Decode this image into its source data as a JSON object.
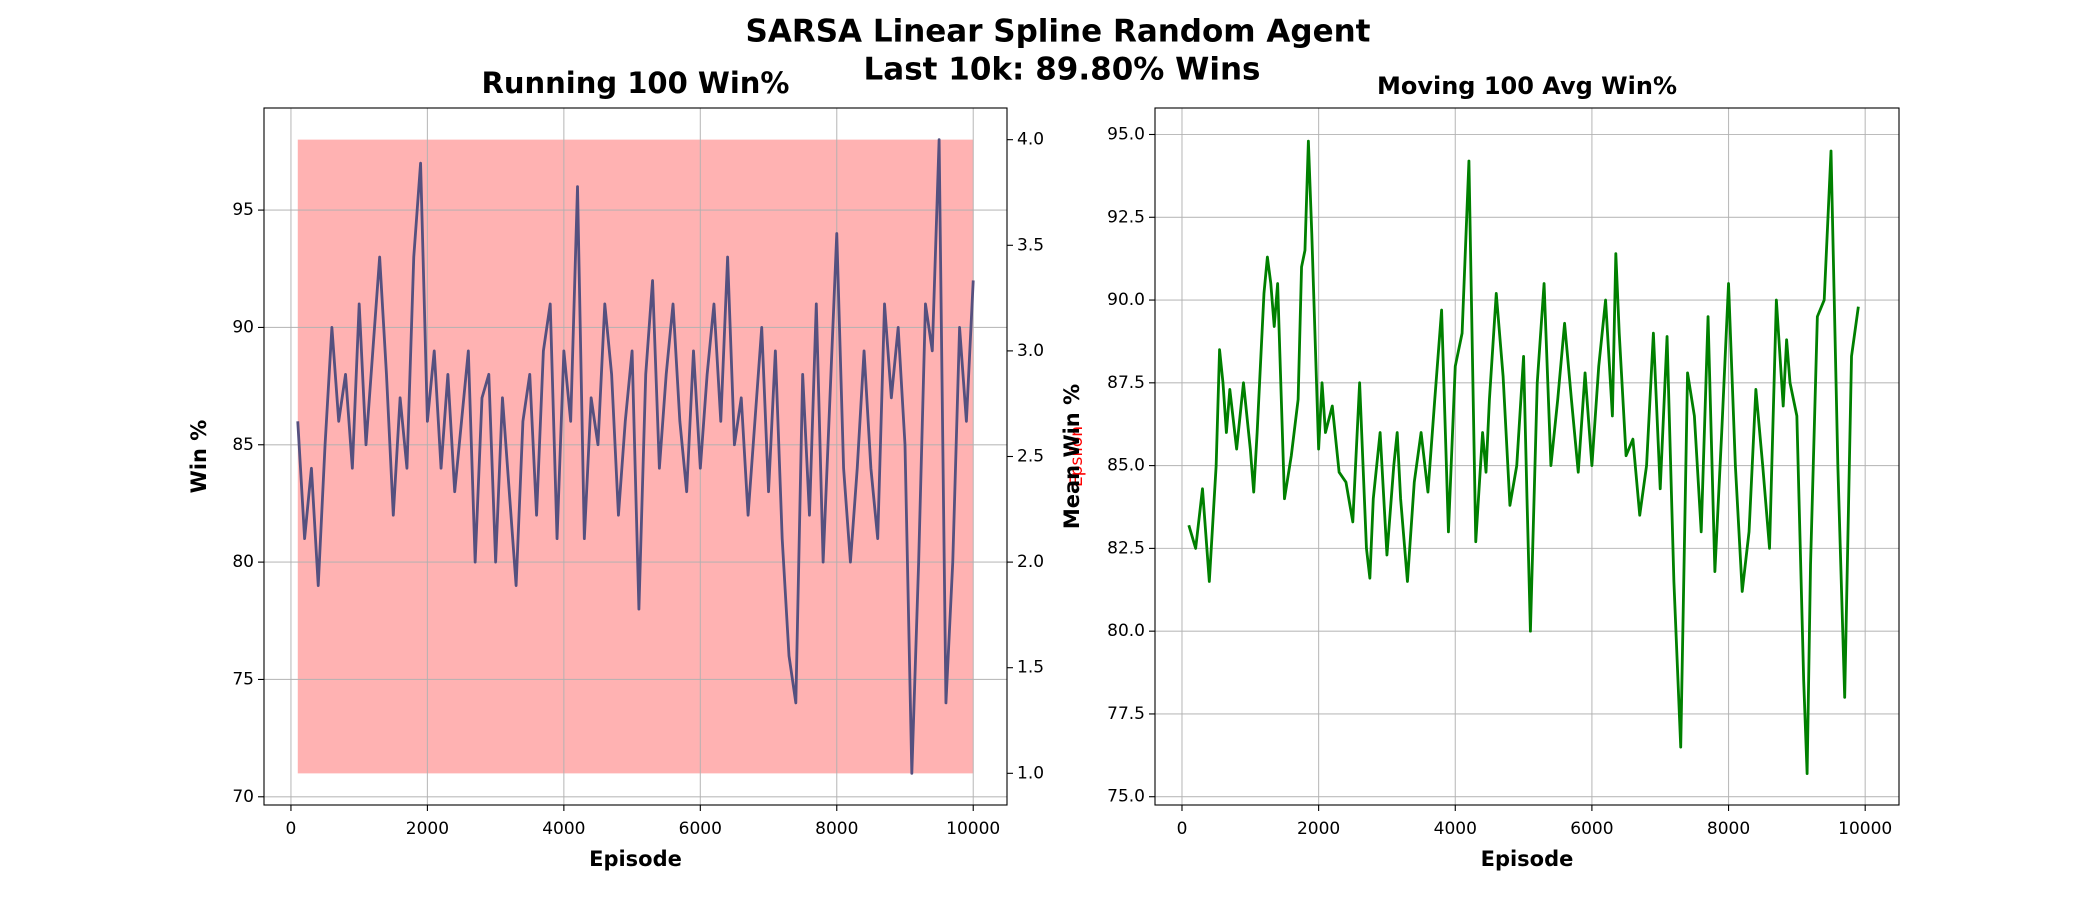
{
  "suptitle": [
    "SARSA Linear Spline Random Agent",
    "Last 10k: 89.80% Wins"
  ],
  "chart_data": [
    {
      "type": "line",
      "title": "Running 100 Win%",
      "xlabel": "Episode",
      "ylabel": "Win %",
      "y2label": "Epsilon",
      "y2label_color": "#ff0000",
      "xlim": [
        -395,
        10495
      ],
      "xticks": [
        0,
        2000,
        4000,
        6000,
        8000,
        10000
      ],
      "ylim": [
        69.65,
        99.35
      ],
      "yticks": [
        70,
        75,
        80,
        85,
        90,
        95
      ],
      "y2lim": [
        0.85,
        4.15
      ],
      "y2ticks": [
        {
          "value": 1,
          "label": "1.0"
        },
        1.5,
        {
          "value": 2,
          "label": "2.0"
        },
        2.5,
        {
          "value": 3,
          "label": "3.0"
        },
        3.5,
        {
          "value": 4,
          "label": "4.0"
        }
      ],
      "grid": true,
      "band": {
        "color": "#ff0000",
        "opacity": 0.3,
        "x": [
          100,
          10000
        ],
        "lower": [
          71,
          71
        ],
        "upper": [
          98,
          98
        ]
      },
      "series": [
        {
          "color": "#55507f",
          "x": [
            100,
            200,
            300,
            400,
            500,
            600,
            700,
            800,
            900,
            1000,
            1100,
            1200,
            1300,
            1400,
            1500,
            1600,
            1700,
            1800,
            1900,
            2000,
            2100,
            2200,
            2300,
            2400,
            2500,
            2600,
            2700,
            2800,
            2900,
            3000,
            3100,
            3200,
            3300,
            3400,
            3500,
            3600,
            3700,
            3800,
            3900,
            4000,
            4100,
            4200,
            4300,
            4400,
            4500,
            4600,
            4700,
            4800,
            4900,
            5000,
            5100,
            5200,
            5300,
            5400,
            5500,
            5600,
            5700,
            5800,
            5900,
            6000,
            6100,
            6200,
            6300,
            6400,
            6500,
            6600,
            6700,
            6800,
            6900,
            7000,
            7100,
            7200,
            7300,
            7400,
            7500,
            7600,
            7700,
            7800,
            7900,
            8000,
            8100,
            8200,
            8300,
            8400,
            8500,
            8600,
            8700,
            8800,
            8900,
            9000,
            9100,
            9200,
            9300,
            9400,
            9500,
            9600,
            9700,
            9800,
            9900,
            10000
          ],
          "values": [
            86,
            81,
            84,
            79,
            85,
            90,
            86,
            88,
            84,
            91,
            85,
            89,
            93,
            88,
            82,
            87,
            84,
            93,
            97,
            86,
            89,
            84,
            88,
            83,
            86,
            89,
            80,
            87,
            88,
            80,
            87,
            83,
            79,
            86,
            88,
            82,
            89,
            91,
            81,
            89,
            86,
            96,
            81,
            87,
            85,
            91,
            88,
            82,
            86,
            89,
            78,
            88,
            92,
            84,
            88,
            91,
            86,
            83,
            89,
            84,
            88,
            91,
            86,
            93,
            85,
            87,
            82,
            86,
            90,
            83,
            89,
            81,
            76,
            74,
            88,
            82,
            91,
            80,
            87,
            94,
            84,
            80,
            84,
            89,
            84,
            81,
            91,
            87,
            90,
            85,
            71,
            80,
            91,
            89,
            98,
            74,
            80,
            90,
            86,
            92
          ]
        }
      ]
    },
    {
      "type": "line",
      "title": "Moving 100 Avg Win%",
      "xlabel": "Episode",
      "ylabel": "Mean Win %",
      "xlim": [
        -395,
        10495
      ],
      "xticks": [
        0,
        2000,
        4000,
        6000,
        8000,
        10000
      ],
      "ylim": [
        74.75,
        95.8
      ],
      "yticks": [
        {
          "value": 75,
          "label": "75.0"
        },
        77.5,
        {
          "value": 80,
          "label": "80.0"
        },
        82.5,
        {
          "value": 85,
          "label": "85.0"
        },
        87.5,
        {
          "value": 90,
          "label": "90.0"
        },
        92.5,
        {
          "value": 95,
          "label": "95.0"
        }
      ],
      "grid": true,
      "series": [
        {
          "color": "#008000",
          "x": [
            100,
            200,
            300,
            400,
            500,
            550,
            600,
            650,
            700,
            800,
            900,
            1000,
            1050,
            1100,
            1200,
            1250,
            1300,
            1350,
            1400,
            1500,
            1600,
            1700,
            1750,
            1800,
            1850,
            1900,
            2000,
            2050,
            2100,
            2200,
            2300,
            2400,
            2500,
            2600,
            2700,
            2750,
            2800,
            2900,
            3000,
            3100,
            3150,
            3200,
            3300,
            3400,
            3500,
            3600,
            3700,
            3800,
            3900,
            4000,
            4100,
            4200,
            4300,
            4400,
            4450,
            4500,
            4600,
            4700,
            4800,
            4900,
            5000,
            5050,
            5100,
            5200,
            5300,
            5400,
            5500,
            5600,
            5700,
            5800,
            5900,
            6000,
            6100,
            6200,
            6300,
            6350,
            6400,
            6500,
            6600,
            6700,
            6800,
            6900,
            7000,
            7100,
            7200,
            7300,
            7400,
            7500,
            7600,
            7700,
            7800,
            7900,
            8000,
            8100,
            8200,
            8300,
            8400,
            8500,
            8600,
            8700,
            8800,
            8850,
            8900,
            9000,
            9100,
            9150,
            9200,
            9300,
            9400,
            9500,
            9600,
            9700,
            9800,
            9900
          ],
          "values": [
            83.2,
            82.5,
            84.3,
            81.5,
            85,
            88.5,
            87.5,
            86,
            87.3,
            85.5,
            87.5,
            85.5,
            84.2,
            86,
            90.2,
            91.3,
            90.5,
            89.2,
            90.5,
            84,
            85.3,
            87,
            91,
            91.5,
            94.8,
            92,
            85.5,
            87.5,
            86,
            86.8,
            84.8,
            84.5,
            83.3,
            87.5,
            82.5,
            81.6,
            84,
            86,
            82.3,
            85,
            86,
            84,
            81.5,
            84.5,
            86,
            84.2,
            87,
            89.7,
            83,
            88,
            89,
            94.2,
            82.7,
            86,
            84.8,
            87,
            90.2,
            87.7,
            83.8,
            85,
            88.3,
            84,
            80,
            87.5,
            90.5,
            85,
            87,
            89.3,
            87,
            84.8,
            87.8,
            85,
            88,
            90,
            86.5,
            91.4,
            89,
            85.3,
            85.8,
            83.5,
            85,
            89,
            84.3,
            88.9,
            81.5,
            76.5,
            87.8,
            86.5,
            83,
            89.5,
            81.8,
            86,
            90.5,
            85,
            81.2,
            83,
            87.3,
            85,
            82.5,
            90,
            86.8,
            88.8,
            87.5,
            86.5,
            78.5,
            75.7,
            82,
            89.5,
            90,
            94.5,
            85,
            78,
            88.3,
            89.8
          ]
        }
      ]
    }
  ]
}
